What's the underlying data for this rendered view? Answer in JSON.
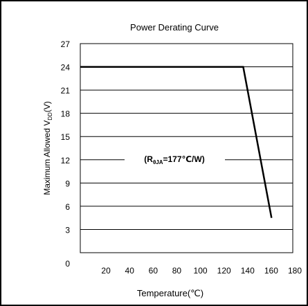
{
  "chart_data": {
    "type": "line",
    "title": "Power Derating Curve",
    "xlabel": "Temperature(℃)",
    "ylabel_main": "Maximum Allowed V",
    "ylabel_sub": "DD",
    "ylabel_tail": "(V)",
    "x_ticks": [
      20,
      40,
      60,
      80,
      100,
      120,
      140,
      160,
      180
    ],
    "y_ticks": [
      0,
      3,
      6,
      9,
      12,
      15,
      18,
      21,
      24,
      27
    ],
    "xlim": [
      0,
      180
    ],
    "ylim": [
      0,
      27
    ],
    "grid": "horizontal",
    "series": [
      {
        "x": [
          0,
          138,
          162
        ],
        "y": [
          24,
          24,
          4.5
        ]
      }
    ],
    "annotation": {
      "prefix": "(R",
      "sub": "θJA",
      "suffix": "=177℃/W)",
      "y": 12
    }
  }
}
